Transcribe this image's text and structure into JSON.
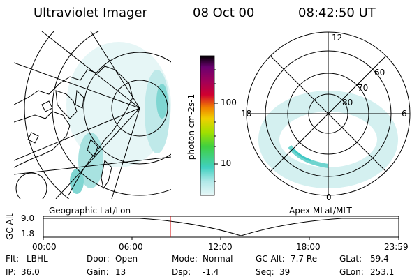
{
  "header": {
    "title": "Ultraviolet Imager",
    "date": "08 Oct 00",
    "time": "08:42:50 UT"
  },
  "geo_panel": {
    "label": "Geographic Lat/Lon"
  },
  "polar_panel": {
    "label": "Apex MLat/MLT",
    "mlt_labels": {
      "top": "12",
      "left": "18",
      "right": "6",
      "bottom": "0"
    },
    "lat_labels": [
      "60",
      "70",
      "80"
    ]
  },
  "colorbar": {
    "unit_label": "photon cm-2s-1",
    "ticks": [
      "100",
      "10"
    ],
    "colors": [
      "#000000",
      "#2a0060",
      "#6a0070",
      "#a0005a",
      "#d00030",
      "#f08000",
      "#f0d000",
      "#a0e000",
      "#40d040",
      "#40d0c0",
      "#b0e8e8",
      "#e8f8f8"
    ]
  },
  "altitude_plot": {
    "axis_label": "GC Alt",
    "y_ticks": [
      "9.0",
      "1.8"
    ],
    "x_ticks": [
      "00:00",
      "06:00",
      "12:00",
      "18:00",
      "23:59"
    ]
  },
  "status": {
    "row1": [
      {
        "key": "Flt:",
        "value": "LBHL"
      },
      {
        "key": "Door:",
        "value": "Open"
      },
      {
        "key": "Mode:",
        "value": "Normal"
      },
      {
        "key": "GC Alt:",
        "value": "7.7 Re"
      },
      {
        "key": "GLat:",
        "value": "59.4"
      }
    ],
    "row2": [
      {
        "key": "IP:",
        "value": "36.0"
      },
      {
        "key": "Gain:",
        "value": "13"
      },
      {
        "key": "Dsp:",
        "value": "-1.4"
      },
      {
        "key": "Seq:",
        "value": "39"
      },
      {
        "key": "GLon:",
        "value": "253.1"
      }
    ]
  }
}
